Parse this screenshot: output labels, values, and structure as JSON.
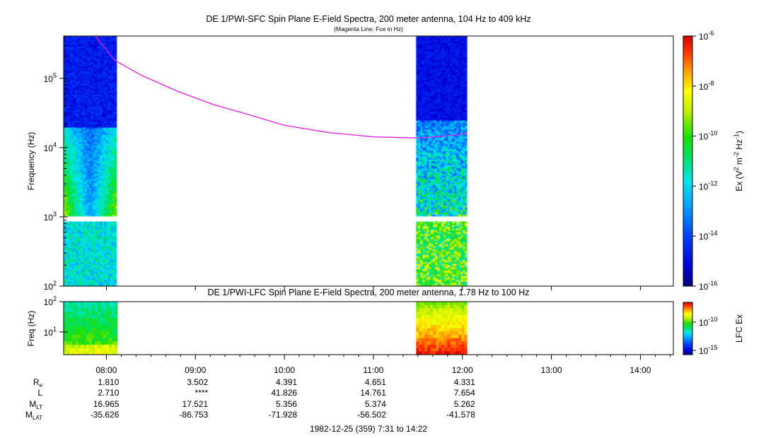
{
  "chart_data": [
    {
      "type": "heatmap",
      "title": "DE 1/PWI-SFC  Spin Plane E-Field Spectra, 200 meter antenna, 104 Hz to 409 kHz",
      "subtitle": "(Magenta Line: Fce in Hz)",
      "ylabel": "Frequency (Hz)",
      "y_scale": "log",
      "ylim": [
        100,
        409000
      ],
      "y_ticks": [
        {
          "value": 100,
          "base": "10",
          "exp": "2"
        },
        {
          "value": 1000,
          "base": "10",
          "exp": "3"
        },
        {
          "value": 10000,
          "base": "10",
          "exp": "4"
        },
        {
          "value": 100000,
          "base": "10",
          "exp": "5"
        }
      ],
      "x_range_ut_hours": [
        7.52,
        14.37
      ],
      "data_blocks_ut_hours": [
        [
          7.52,
          8.1
        ],
        [
          11.48,
          12.05
        ]
      ],
      "colorbar": {
        "label_pre": "Ex (V",
        "label_sup1": "2",
        "label_mid": " m",
        "label_sup2": "-2",
        "label_mid2": " Hz",
        "label_sup3": "-1",
        "label_post": ")",
        "scale": "log",
        "range": [
          1e-16,
          1e-06
        ],
        "ticks": [
          {
            "base": "10",
            "exp": "-6"
          },
          {
            "base": "10",
            "exp": "-8"
          },
          {
            "base": "10",
            "exp": "-10"
          },
          {
            "base": "10",
            "exp": "-12"
          },
          {
            "base": "10",
            "exp": "-14"
          },
          {
            "base": "10",
            "exp": "-16"
          }
        ]
      },
      "fce_line": {
        "color": "#e020e0",
        "points": [
          {
            "t": 7.88,
            "f": 400000
          },
          {
            "t": 8.1,
            "f": 180000
          },
          {
            "t": 8.4,
            "f": 110000
          },
          {
            "t": 8.8,
            "f": 65000
          },
          {
            "t": 9.2,
            "f": 42000
          },
          {
            "t": 9.6,
            "f": 30000
          },
          {
            "t": 10.0,
            "f": 21000
          },
          {
            "t": 10.5,
            "f": 16500
          },
          {
            "t": 11.0,
            "f": 14300
          },
          {
            "t": 11.5,
            "f": 13800
          },
          {
            "t": 11.8,
            "f": 14700
          },
          {
            "t": 12.05,
            "f": 16000
          }
        ]
      }
    },
    {
      "type": "heatmap",
      "title": "DE 1/PWI-LFC  Spin Plane E-Field Spectra, 200 meter antenna, 1.78 Hz to 100 Hz",
      "ylabel": "Freq (Hz)",
      "y_scale": "log",
      "ylim": [
        1.78,
        100
      ],
      "y_ticks": [
        {
          "value": 10,
          "base": "10",
          "exp": "1"
        },
        {
          "value": 100,
          "base": "10",
          "exp": "2"
        }
      ],
      "data_blocks_ut_hours": [
        [
          7.52,
          8.1
        ],
        [
          11.48,
          12.05
        ]
      ],
      "colorbar": {
        "label": "LFC Ex",
        "scale": "log",
        "ticks": [
          {
            "base": "10",
            "exp": "-10"
          },
          {
            "base": "10",
            "exp": "-15"
          }
        ]
      }
    }
  ],
  "x_axis": {
    "ticks": [
      {
        "hour": 8,
        "label": "08:00"
      },
      {
        "hour": 9,
        "label": "09:00"
      },
      {
        "hour": 10,
        "label": "10:00"
      },
      {
        "hour": 11,
        "label": "11:00"
      },
      {
        "hour": 12,
        "label": "12:00"
      },
      {
        "hour": 13,
        "label": "13:00"
      },
      {
        "hour": 14,
        "label": "14:00"
      }
    ]
  },
  "ephemeris": {
    "rows": [
      {
        "label": "R",
        "sub": "e",
        "values": [
          "1.810",
          "3.502",
          "4.391",
          "4.651",
          "4.331"
        ]
      },
      {
        "label": "L",
        "sub": "",
        "values": [
          "2.710",
          "****",
          "41.826",
          "14.761",
          "7.654"
        ]
      },
      {
        "label": "M",
        "sub": "LT",
        "values": [
          "16.965",
          "17.521",
          "5.356",
          "5.374",
          "5.262"
        ]
      },
      {
        "label": "M",
        "sub": "LAT",
        "values": [
          "-35.626",
          "-86.753",
          "-71.928",
          "-56.502",
          "-41.578"
        ]
      }
    ]
  },
  "footer": "1982-12-25 (359) 7:31 to 14:22"
}
